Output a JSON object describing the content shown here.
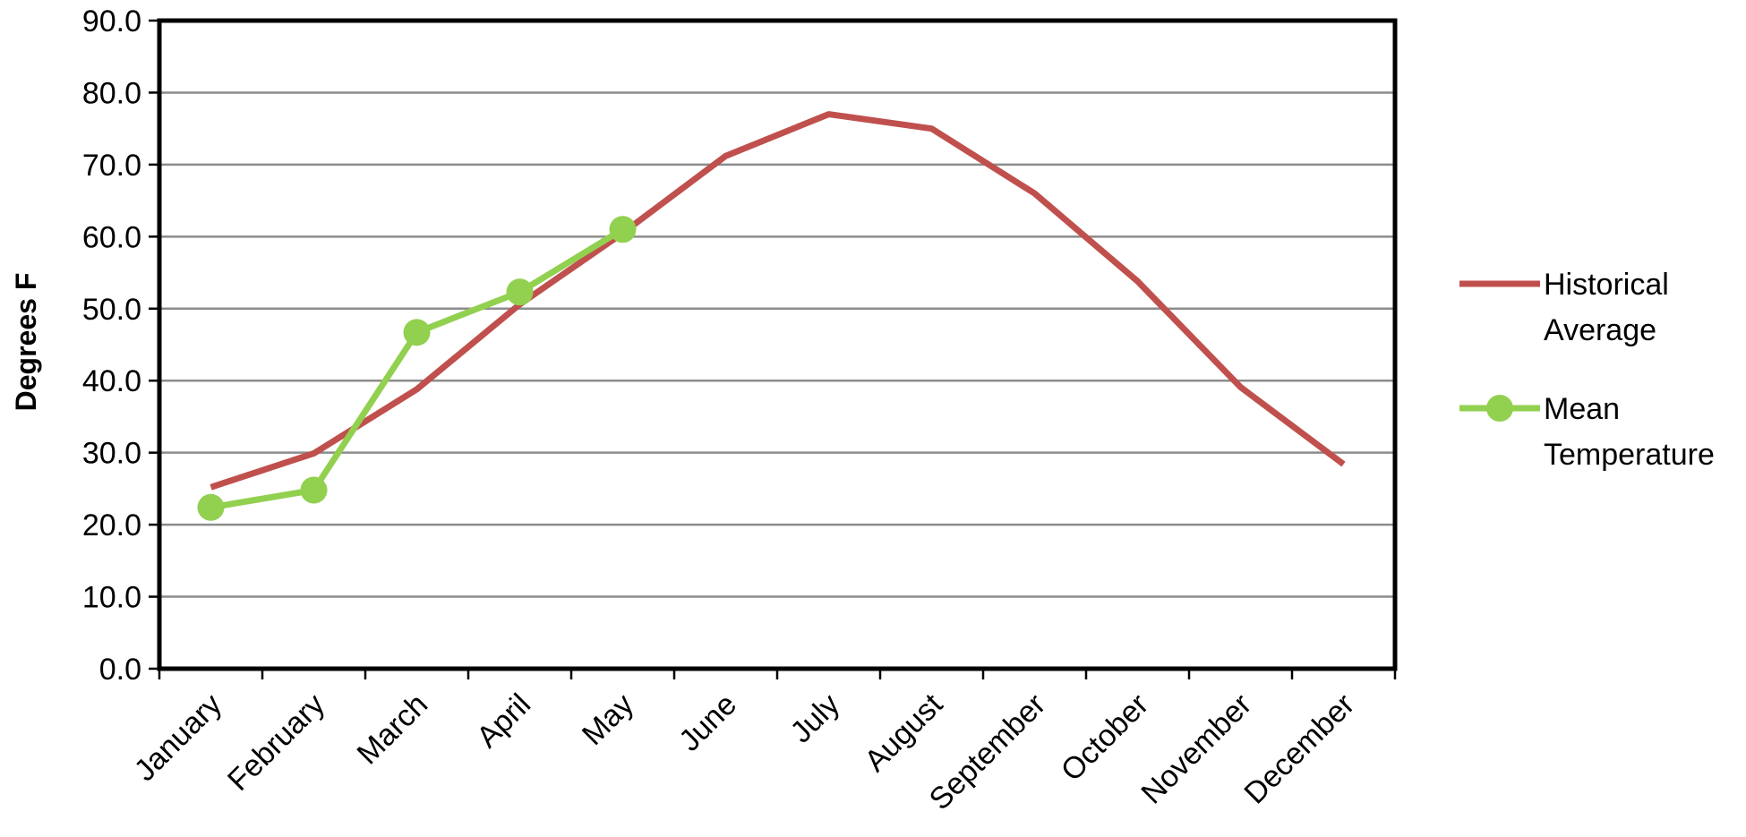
{
  "chart_data": {
    "type": "line",
    "title": "",
    "xlabel": "",
    "ylabel": "Degrees F",
    "ylim": [
      0,
      90
    ],
    "y_ticks": [
      "0.0",
      "10.0",
      "20.0",
      "30.0",
      "40.0",
      "50.0",
      "60.0",
      "70.0",
      "80.0",
      "90.0"
    ],
    "categories": [
      "January",
      "February",
      "March",
      "April",
      "May",
      "June",
      "July",
      "August",
      "September",
      "October",
      "November",
      "December"
    ],
    "grid": true,
    "legend_position": "right",
    "series": [
      {
        "name": "Historical Average",
        "name_lines": [
          "Historical",
          "Average"
        ],
        "color": "#c0504d",
        "markers": false,
        "values": [
          25.2,
          29.9,
          38.8,
          50.6,
          60.5,
          71.2,
          77.0,
          75.0,
          66.0,
          53.8,
          39.1,
          28.4
        ]
      },
      {
        "name": "Mean Temperature",
        "name_lines": [
          "Mean",
          "Temperature"
        ],
        "color": "#92d050",
        "markers": true,
        "values": [
          22.4,
          24.8,
          46.7,
          52.3,
          61.0,
          null,
          null,
          null,
          null,
          null,
          null,
          null
        ]
      }
    ]
  }
}
